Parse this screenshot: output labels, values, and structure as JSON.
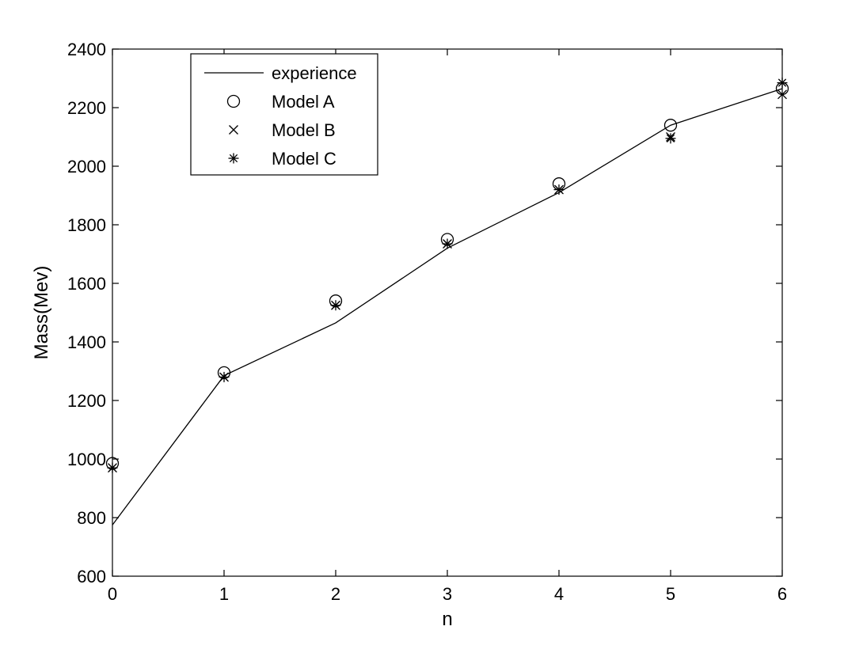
{
  "chart_data": {
    "type": "line",
    "title": "",
    "xlabel": "n",
    "ylabel": "Mass(Mev)",
    "xlim": [
      0,
      6
    ],
    "ylim": [
      600,
      2400
    ],
    "xticks": [
      0,
      1,
      2,
      3,
      4,
      5,
      6
    ],
    "xtick_labels": [
      "0",
      "1",
      "2",
      "3",
      "4",
      "5",
      "6"
    ],
    "yticks": [
      600,
      800,
      1000,
      1200,
      1400,
      1600,
      1800,
      2000,
      2200,
      2400
    ],
    "ytick_labels": [
      "600",
      "800",
      "1000",
      "1200",
      "1400",
      "1600",
      "1800",
      "2000",
      "2200",
      "2400"
    ],
    "grid": false,
    "legend_position": "top-left",
    "x": [
      0,
      1,
      2,
      3,
      4,
      5,
      6
    ],
    "series": [
      {
        "name": "experience",
        "marker": "line",
        "values": [
          775,
          1285,
          1465,
          1720,
          1910,
          2140,
          2265
        ]
      },
      {
        "name": "Model A",
        "marker": "circle",
        "values": [
          985,
          1295,
          1540,
          1750,
          1940,
          2140,
          2265
        ]
      },
      {
        "name": "Model B",
        "marker": "x",
        "values": [
          970,
          1280,
          1525,
          1735,
          1920,
          2100,
          2245
        ]
      },
      {
        "name": "Model C",
        "marker": "asterisk",
        "values": [
          970,
          1280,
          1525,
          1735,
          1920,
          2095,
          2285
        ]
      }
    ]
  }
}
